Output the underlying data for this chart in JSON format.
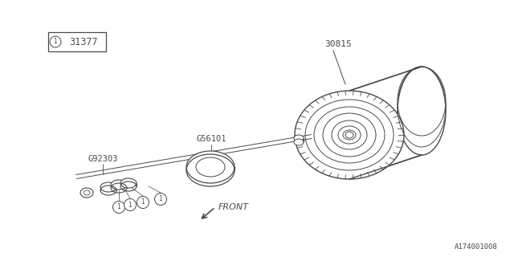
{
  "bg_color": "#ffffff",
  "line_color": "#4a4a4a",
  "part_label_1": "31377",
  "part_label_2": "30815",
  "part_label_3": "G56101",
  "part_label_4": "G92303",
  "front_label": "FRONT",
  "diagram_id": "A174001008",
  "fig_width": 6.4,
  "fig_height": 3.2,
  "dpi": 100
}
